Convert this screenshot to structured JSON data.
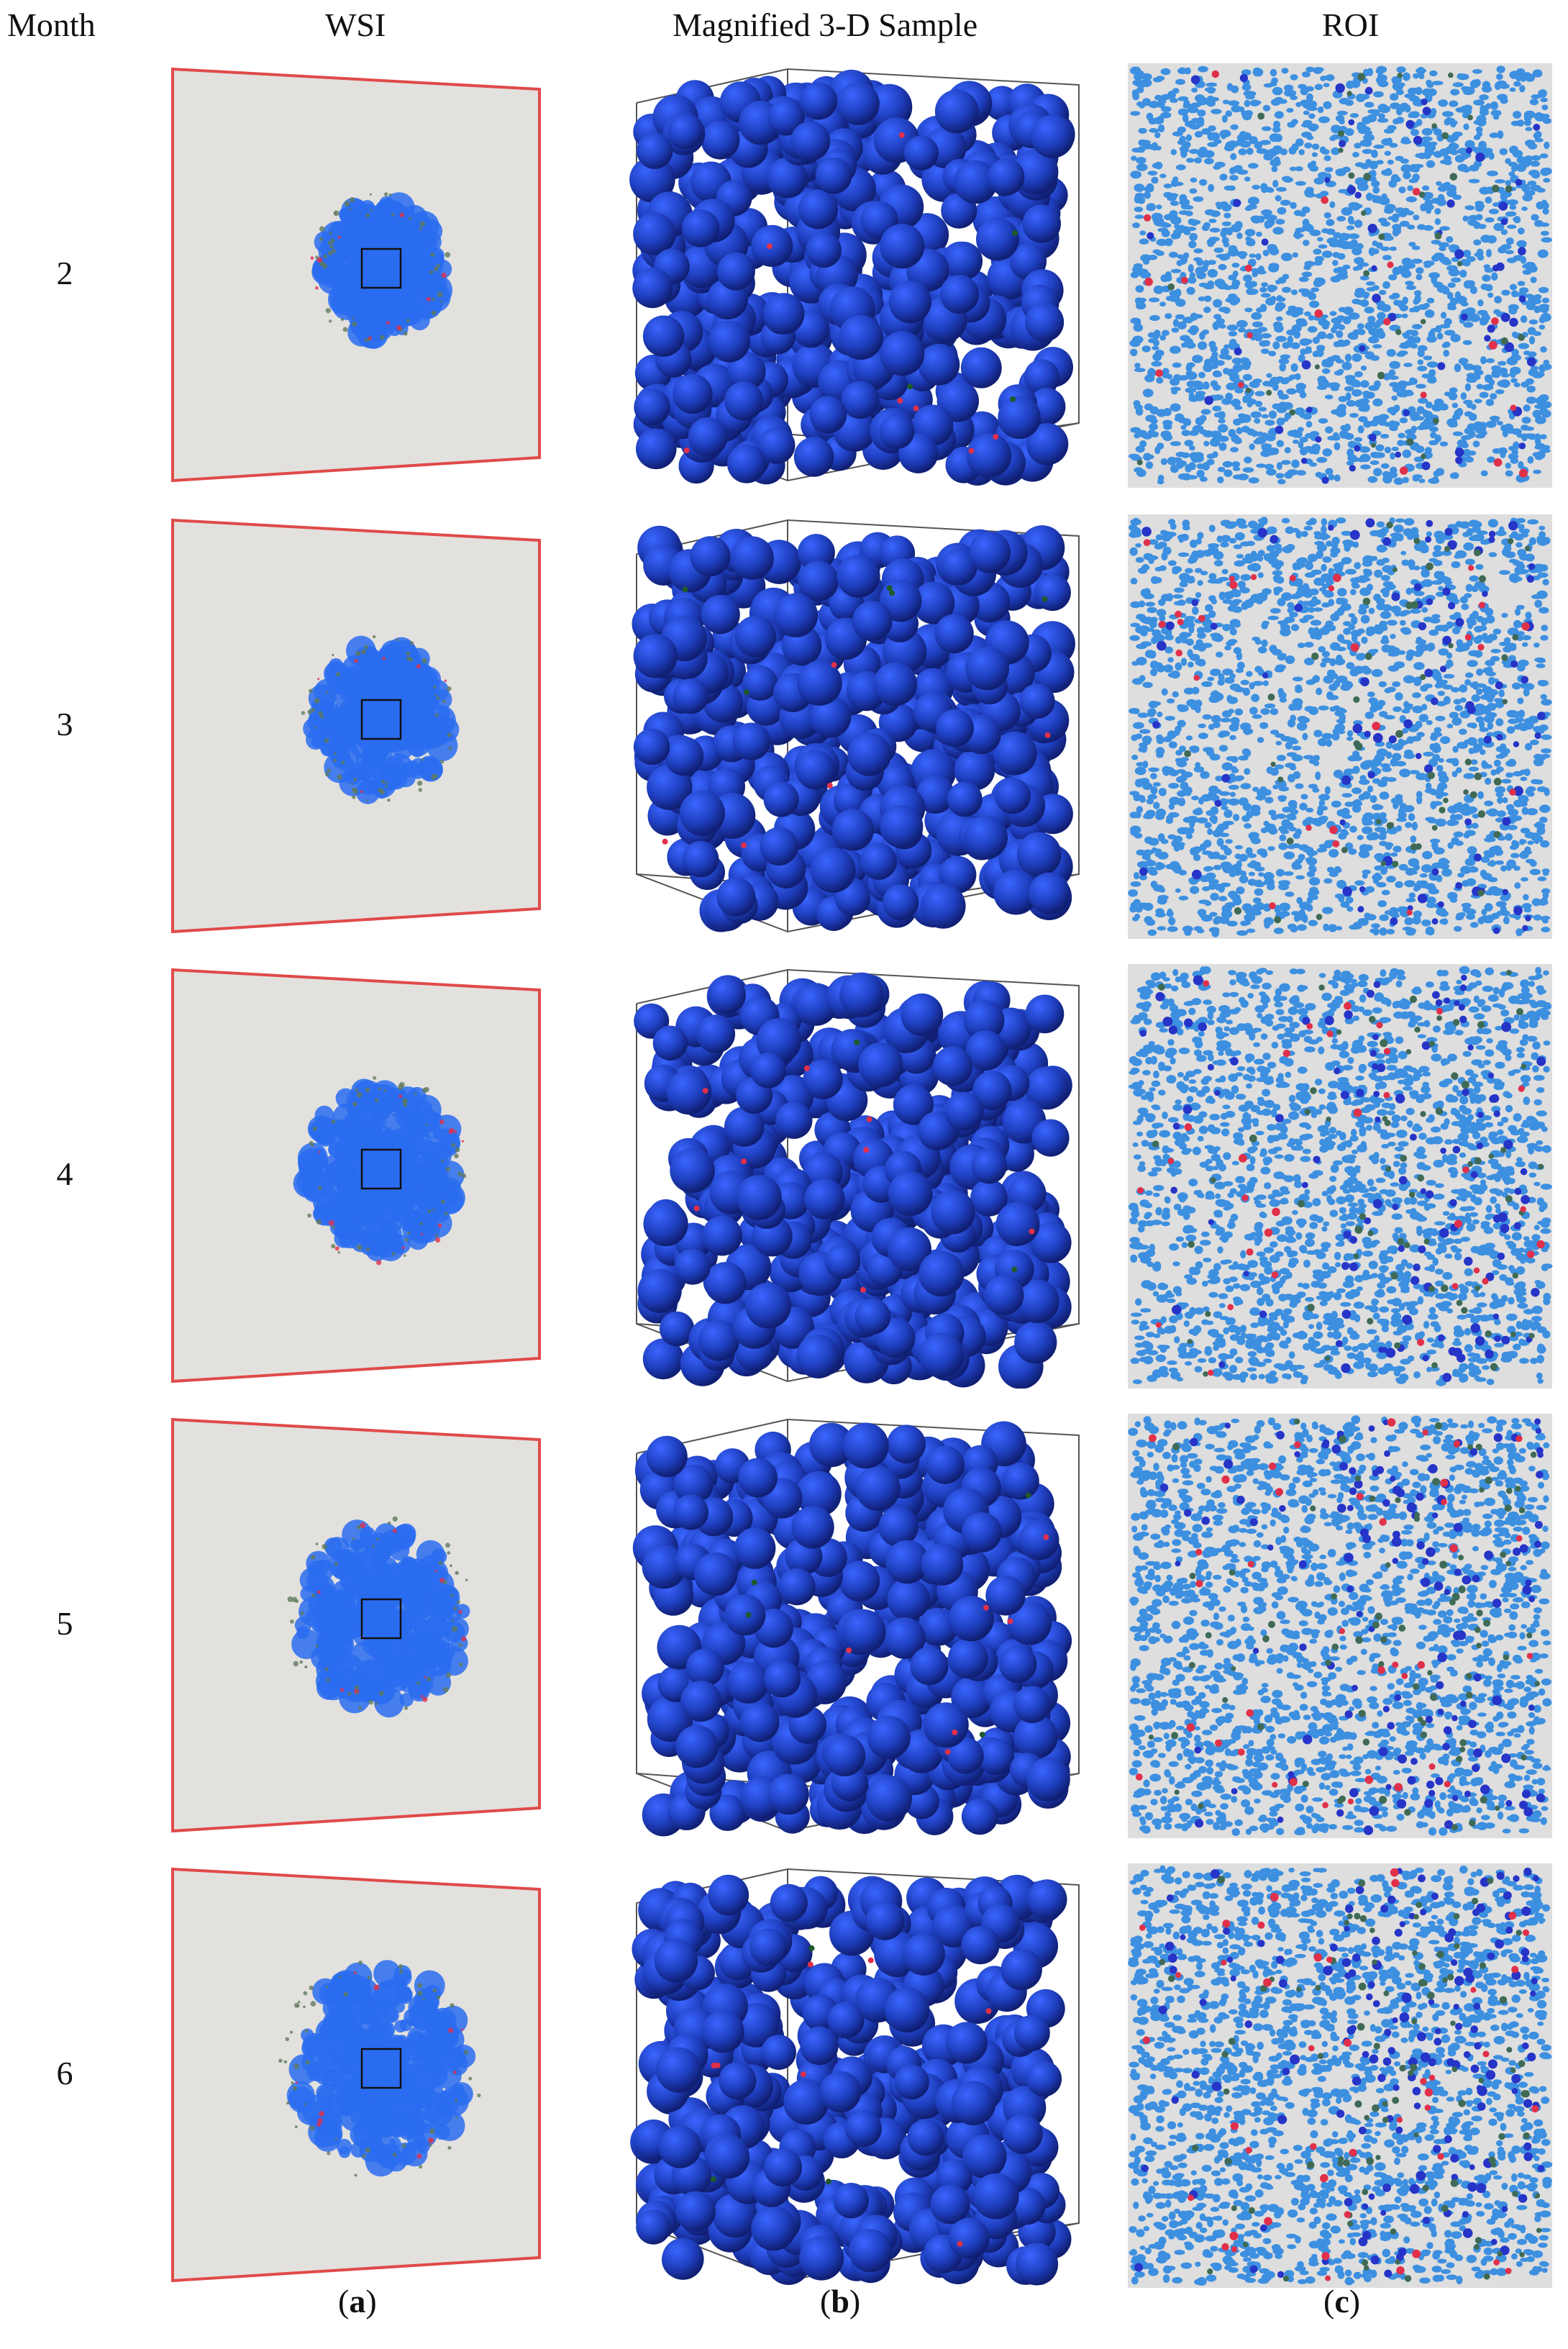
{
  "headers": {
    "month": "Month",
    "wsi": "WSI",
    "sample": "Magnified 3-D Sample",
    "roi": "ROI"
  },
  "rows": [
    {
      "month": "2"
    },
    {
      "month": "3"
    },
    {
      "month": "4"
    },
    {
      "month": "5"
    },
    {
      "month": "6"
    }
  ],
  "captions": {
    "a": "a",
    "b": "b",
    "c": "c"
  },
  "colors": {
    "slide_bg": "#e3e1de",
    "slide_border": "#e04a4a",
    "tumor": "#2a6cf0",
    "sphere": "#1f3fbf",
    "roi_bg": "#dedede",
    "roi_cell": "#3d8fe0",
    "roi_dark": "#2634c8",
    "roi_red": "#e0304a",
    "roi_green": "#3f6a55"
  }
}
